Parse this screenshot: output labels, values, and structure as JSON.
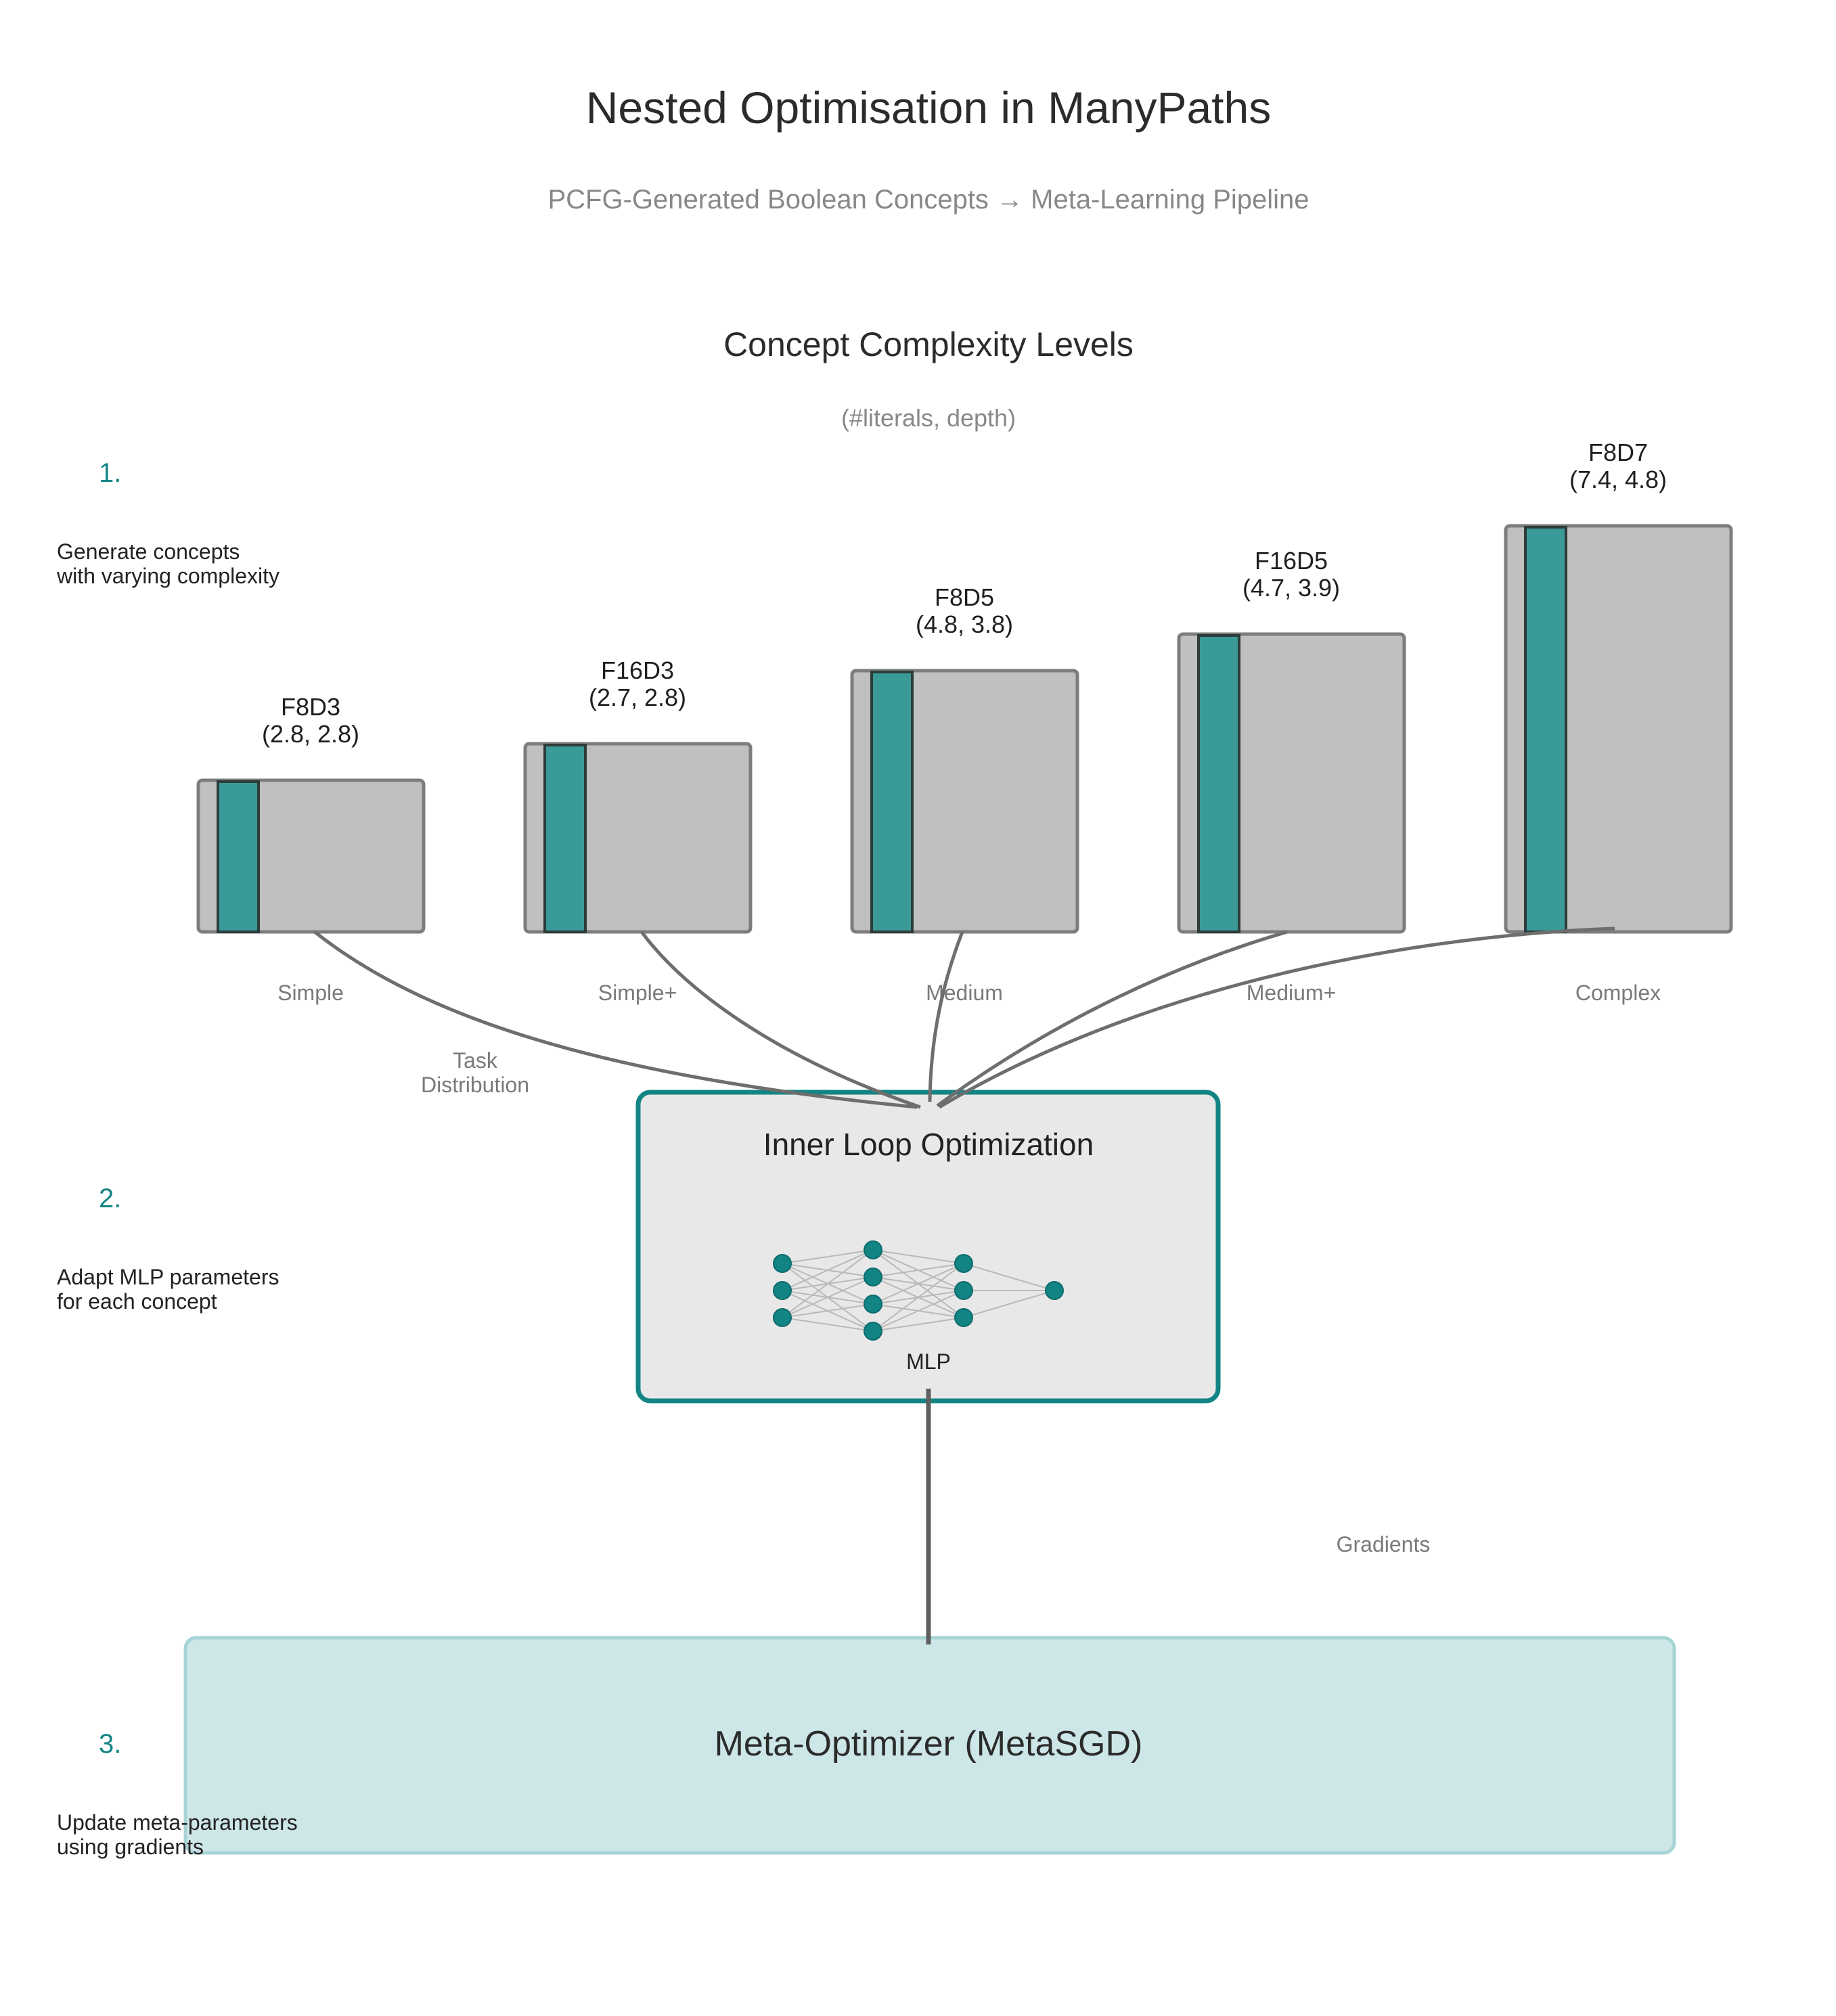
{
  "title": "Nested Optimisation in ManyPaths",
  "subtitle": "PCFG-Generated Boolean Concepts → Meta-Learning Pipeline",
  "complexity_section": {
    "title": "Concept Complexity Levels",
    "subtitle": "(#literals, depth)"
  },
  "steps": [
    {
      "number": "1.",
      "lines": [
        "Generate concepts",
        "with varying complexity"
      ]
    },
    {
      "number": "2.",
      "lines": [
        "Adapt MLP parameters",
        "for each concept"
      ]
    },
    {
      "number": "3.",
      "lines": [
        "Update meta-parameters",
        "using gradients"
      ]
    }
  ],
  "concepts": [
    {
      "name": "F8D3",
      "stats": "(2.8, 2.8)",
      "level": "Simple"
    },
    {
      "name": "F16D3",
      "stats": "(2.7, 2.8)",
      "level": "Simple+"
    },
    {
      "name": "F8D5",
      "stats": "(4.8, 3.8)",
      "level": "Medium"
    },
    {
      "name": "F16D5",
      "stats": "(4.7, 3.9)",
      "level": "Medium+"
    },
    {
      "name": "F8D7",
      "stats": "(7.4, 4.8)",
      "level": "Complex"
    }
  ],
  "flow_labels": {
    "task_distribution": [
      "Task",
      "Distribution"
    ],
    "gradients": "Gradients"
  },
  "inner_loop": {
    "title": "Inner Loop Optimization",
    "network_label": "MLP"
  },
  "meta_optimizer": {
    "title": "Meta-Optimizer (MetaSGD)"
  },
  "colors": {
    "accent": "#138484",
    "concept_bar": "#3a9a97",
    "concept_box": "#c0c0c0",
    "inner_box": "#e8e8e8",
    "meta_box": "#cde6e7",
    "connector": "#6e6e6e"
  }
}
